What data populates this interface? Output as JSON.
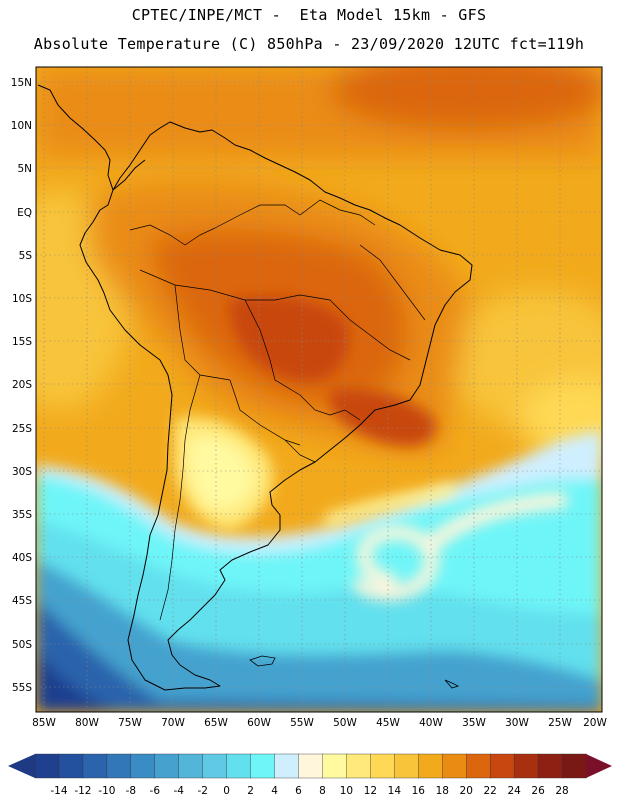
{
  "header": {
    "line1": "CPTEC/INPE/MCT -  Eta Model 15km - GFS",
    "line2": "Absolute Temperature (C) 850hPa - 23/09/2020 12UTC fct=119h"
  },
  "map": {
    "lat_labels": [
      "15N",
      "10N",
      "5N",
      "EQ",
      "5S",
      "10S",
      "15S",
      "20S",
      "25S",
      "30S",
      "35S",
      "40S",
      "45S",
      "50S",
      "55S"
    ],
    "lon_labels": [
      "85W",
      "80W",
      "75W",
      "70W",
      "65W",
      "60W",
      "55W",
      "50W",
      "45W",
      "40W",
      "35W",
      "30W",
      "25W",
      "20W"
    ]
  },
  "colorbar": {
    "labels": [
      "-14",
      "-12",
      "-10",
      "-8",
      "-6",
      "-4",
      "-2",
      "0",
      "2",
      "4",
      "6",
      "8",
      "10",
      "12",
      "14",
      "16",
      "18",
      "20",
      "22",
      "24",
      "26",
      "28"
    ],
    "colors": [
      "#1f3f8f",
      "#24519e",
      "#2b64ac",
      "#3278b8",
      "#3a8cc4",
      "#45a2cf",
      "#53b6d9",
      "#60cae4",
      "#62e0ee",
      "#6ef5f8",
      "#cfefff",
      "#fff6dc",
      "#fff9a0",
      "#ffe97a",
      "#ffd955",
      "#f8c43a",
      "#f2aa1c",
      "#ea8c12",
      "#dc660e",
      "#c84710",
      "#a82f10",
      "#8e2013",
      "#7a1815"
    ],
    "low_arrow_color": "#1f3a85",
    "high_arrow_color": "#7a0f2a"
  }
}
